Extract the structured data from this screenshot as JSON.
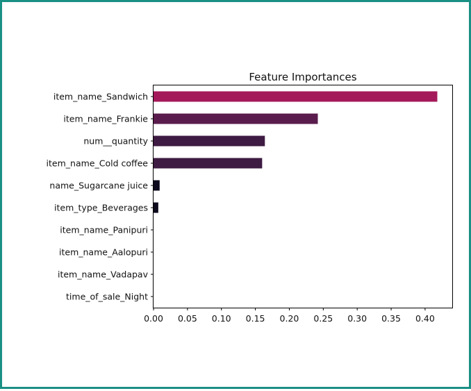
{
  "frame": {
    "border_color": "#1a8f84"
  },
  "chart_data": {
    "type": "bar",
    "orientation": "horizontal",
    "title": "Feature Importances",
    "xlabel": "",
    "ylabel": "",
    "xlim": [
      0,
      0.44
    ],
    "xticks": [
      "0.00",
      "0.05",
      "0.10",
      "0.15",
      "0.20",
      "0.25",
      "0.30",
      "0.35",
      "0.40"
    ],
    "grid": false,
    "categories": [
      "item_name_Sandwich",
      "item_name_Frankie",
      "num__quantity",
      "item_name_Cold coffee",
      "name_Sugarcane juice",
      "item_type_Beverages",
      "item_name_Panipuri",
      "item_name_Aalopuri",
      "item_name_Vadapav",
      "time_of_sale_Night"
    ],
    "values": [
      0.418,
      0.242,
      0.164,
      0.16,
      0.009,
      0.007,
      0.0,
      0.0,
      0.0,
      0.0
    ],
    "colors": [
      "#a4195a",
      "#5a1c4c",
      "#3e1b42",
      "#3e1b42",
      "#0c0a1c",
      "#0c0a1c",
      "#000000",
      "#000000",
      "#000000",
      "#000000"
    ]
  }
}
